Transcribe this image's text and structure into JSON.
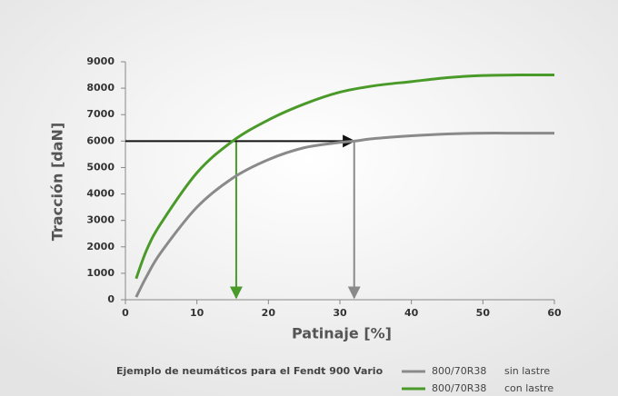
{
  "chart_data": {
    "type": "line",
    "xlabel": "Patinaje [%]",
    "ylabel": "Tracción [daN]",
    "caption": "Ejemplo de neumáticos para el Fendt 900 Vario",
    "series": [
      {
        "name": "800/70R38",
        "label": "sin lastre",
        "color": "#8a8a8a",
        "x": [
          1.5,
          3,
          5,
          10,
          15,
          20,
          25,
          30,
          32,
          35,
          40,
          45,
          50,
          55,
          60
        ],
        "values": [
          100,
          900,
          1800,
          3500,
          4600,
          5300,
          5750,
          5950,
          6000,
          6100,
          6200,
          6270,
          6300,
          6300,
          6300
        ]
      },
      {
        "name": "800/70R38",
        "label": "con lastre",
        "color": "#4a9a2a",
        "x": [
          1.5,
          3,
          5,
          10,
          15,
          20,
          25,
          30,
          35,
          40,
          45,
          50,
          55,
          60
        ],
        "values": [
          800,
          1900,
          2900,
          4800,
          6000,
          6800,
          7400,
          7850,
          8100,
          8250,
          8400,
          8480,
          8500,
          8500
        ]
      }
    ],
    "markers": [
      {
        "x": 15.5,
        "y": 6000,
        "color": "#4a9a2a"
      },
      {
        "x": 32,
        "y": 6000,
        "color": "#8a8a8a"
      }
    ],
    "xlim": [
      0,
      60
    ],
    "xticks": [
      0,
      10,
      20,
      30,
      40,
      50,
      60
    ],
    "ylim": [
      0,
      9000
    ],
    "yticks": [
      0,
      1000,
      2000,
      3000,
      4000,
      5000,
      6000,
      7000,
      8000,
      9000
    ]
  }
}
